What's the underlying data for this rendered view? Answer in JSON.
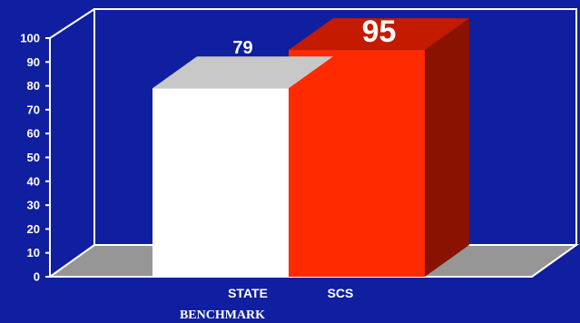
{
  "chart_data": {
    "type": "bar",
    "categories": [
      "STATE",
      "SCS"
    ],
    "category_sublabels": [
      "BENCHMARK",
      ""
    ],
    "values": [
      79,
      95
    ],
    "ylim": [
      0,
      100
    ],
    "yticks": [
      0,
      10,
      20,
      30,
      40,
      50,
      60,
      70,
      80,
      90,
      100
    ],
    "colors": {
      "background": "#0f1f9f",
      "floor": "#969696",
      "axis": "#ffffff",
      "bars": [
        {
          "front": "#ffffff",
          "top": "#c8c8c8"
        },
        {
          "front": "#ff2a00",
          "top": "#c41a00",
          "side": "#8a1200"
        }
      ]
    }
  }
}
